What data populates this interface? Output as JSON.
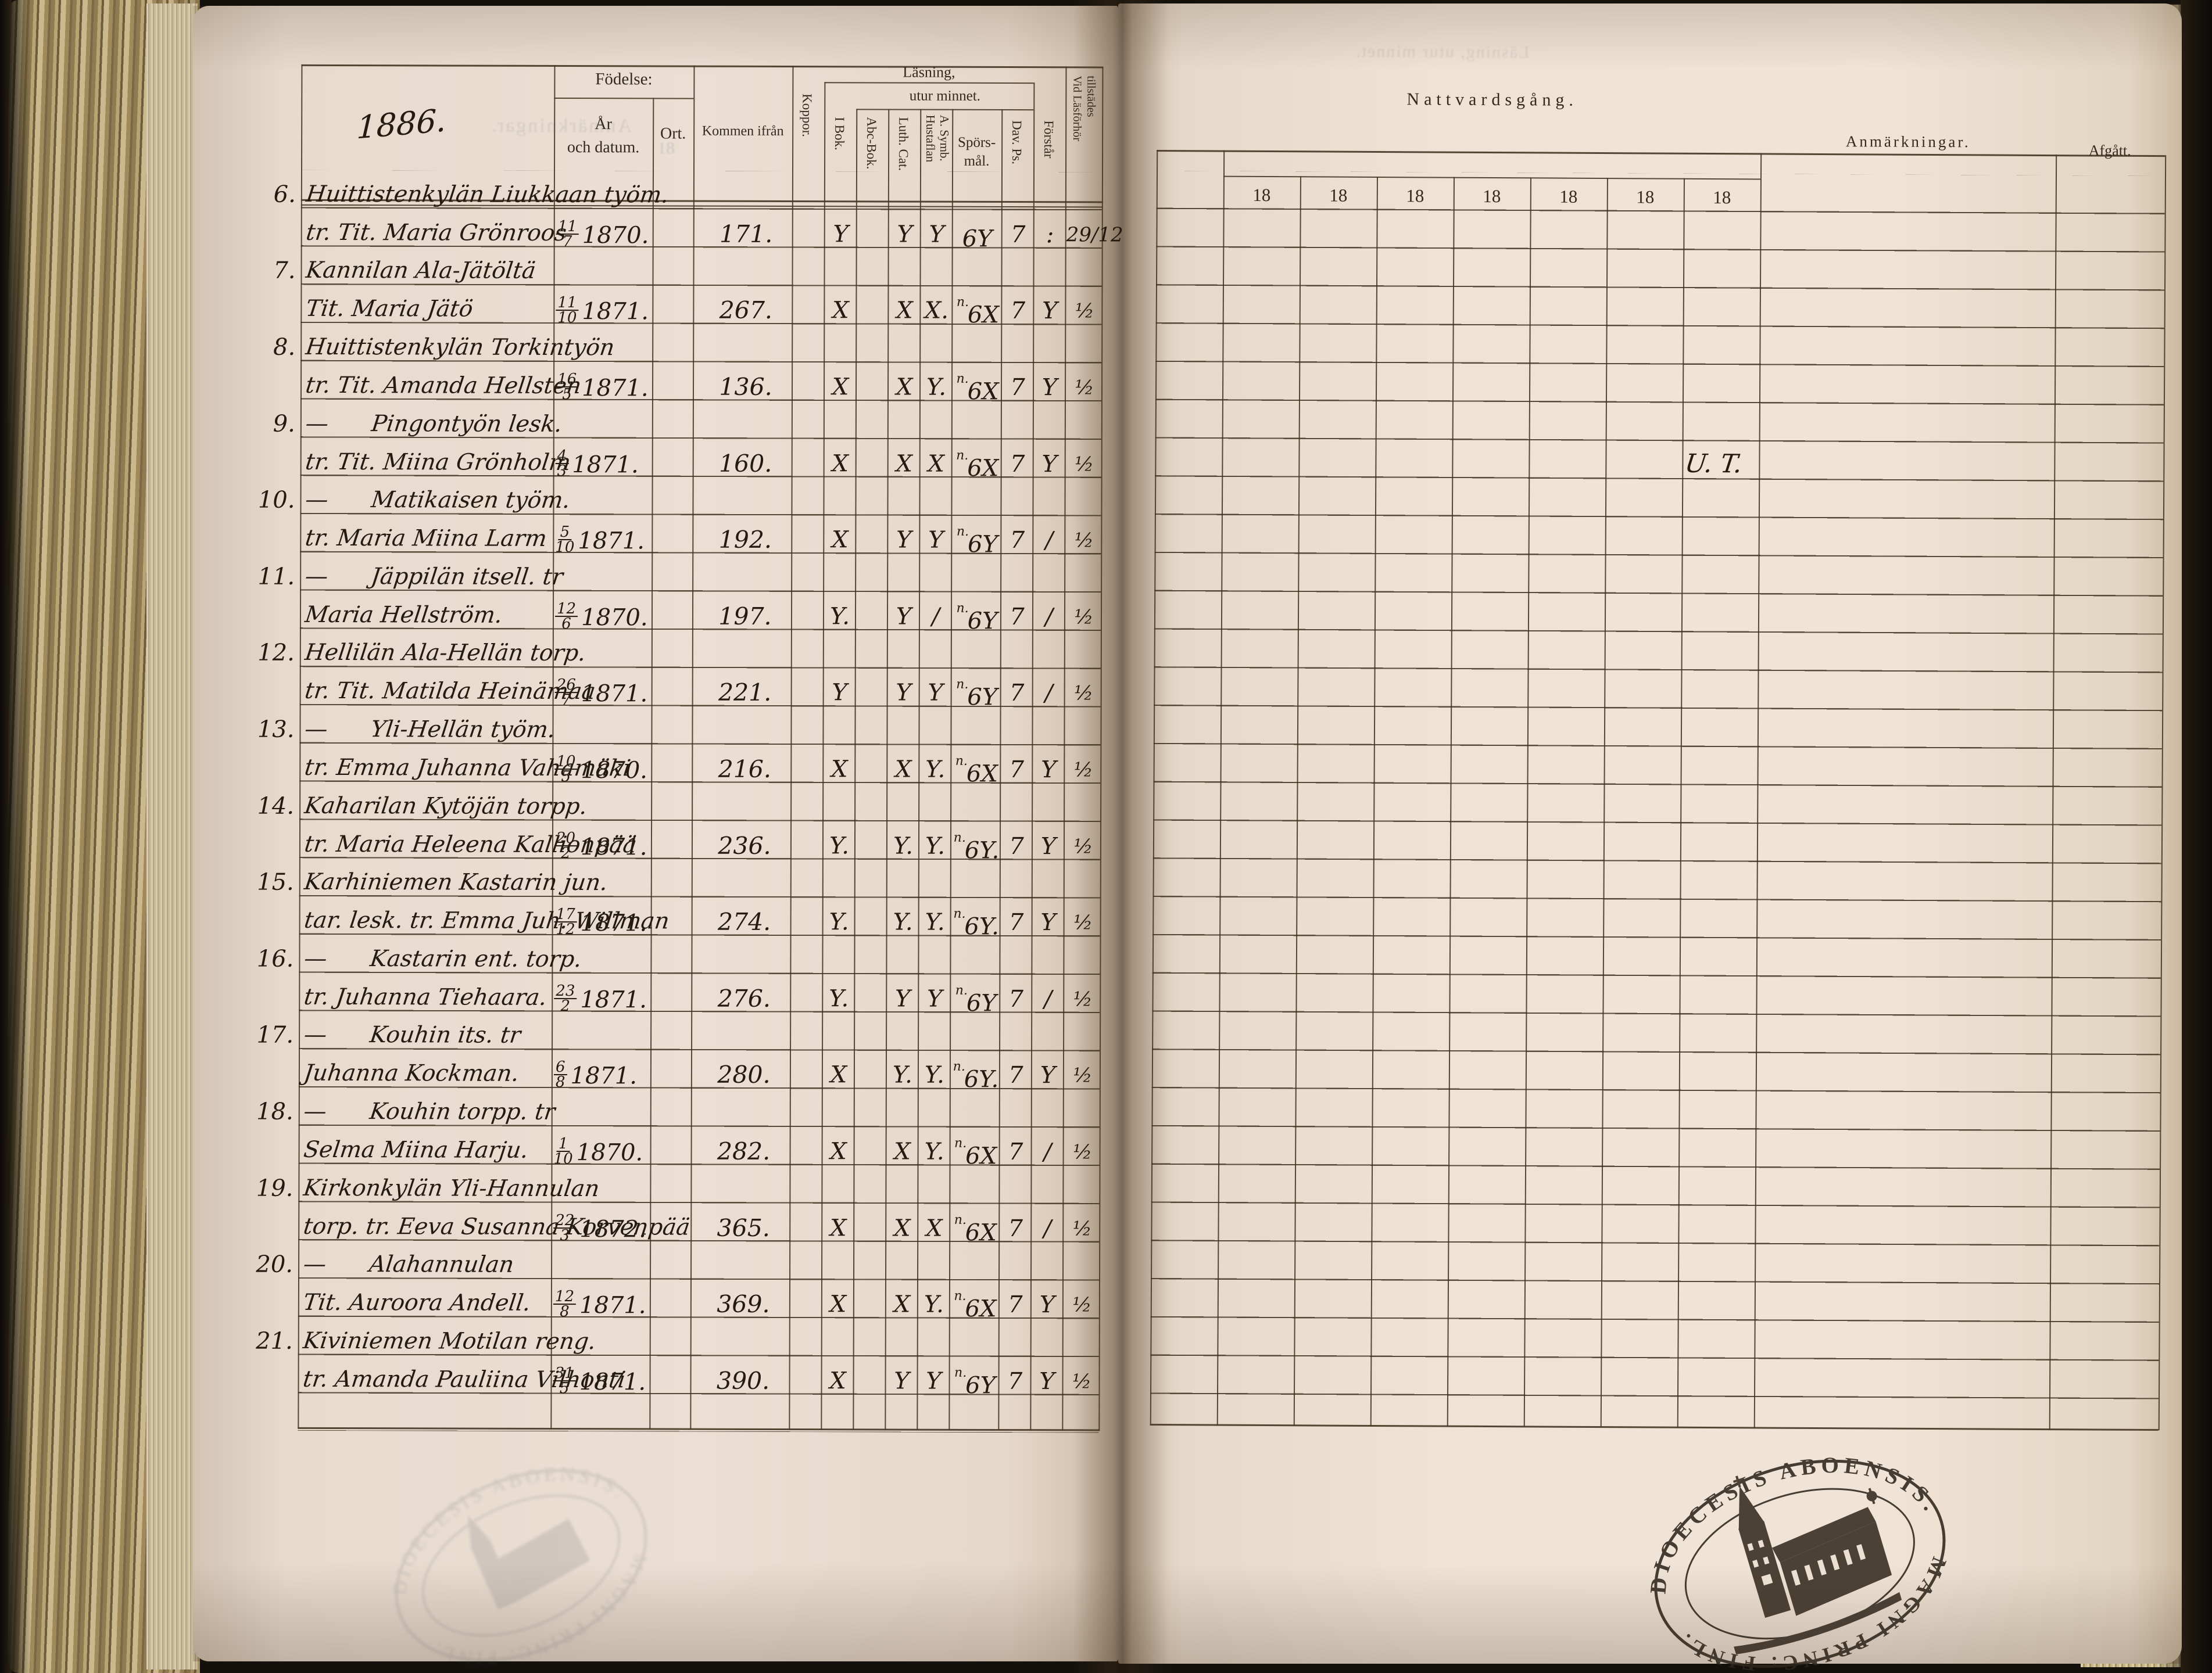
{
  "page_label": {
    "year": "1886."
  },
  "left_table": {
    "headers": {
      "fodelse": "Födelse:",
      "ar": "År",
      "och_datum": "och datum.",
      "ort": "Ort.",
      "kommen": "Kommen ifrån",
      "koppor": "Koppor.",
      "lasning": "Läsning,",
      "utur": "utur minnet.",
      "i_bok": "I Bok.",
      "abc": "Abc-Bok.",
      "luth": "Luth. Cat.",
      "hust1": "Hustaflan",
      "hust2": "A. Symb.",
      "spors1": "Spörs-",
      "spors2": "mål.",
      "dav": "Dav. Ps.",
      "forstar": "Förstår",
      "vid1": "Vid Läsförhör",
      "vid2": "tillstädes"
    },
    "ghosts": {
      "anmarkningar": "Anmärkningar.",
      "ort_ghost": "18",
      "right_header_ghost": "Läsning, utur minnet."
    },
    "rows": [
      {
        "num": "6.",
        "place": "Huittistenkylän Liukkaan työm.",
        "person": "tr. Tit. Maria Grönroos",
        "bdate": "11/7",
        "byear": "1870.",
        "from": "171.",
        "m_ibok": "Y",
        "m_abc": "",
        "m_luth": "Y",
        "m_hust": "Y",
        "m_sup": "",
        "m_spors": "6Y",
        "m_dav": "7",
        "m_forst": ":",
        "m_tillst": "29/12"
      },
      {
        "num": "7.",
        "place": "Kannilan Ala-Jätöltä",
        "person": "Tit. Maria Jätö",
        "bdate": "11/10",
        "byear": "1871.",
        "from": "267.",
        "m_ibok": "X",
        "m_abc": "",
        "m_luth": "X",
        "m_hust": "X.",
        "m_sup": "n.",
        "m_spors": "6X",
        "m_dav": "7",
        "m_forst": "Y",
        "m_tillst": "½"
      },
      {
        "num": "8.",
        "place": "Huittistenkylän Torkintyön",
        "person": "tr. Tit. Amanda Hellsten",
        "bdate": "16/5",
        "byear": "1871.",
        "from": "136.",
        "m_ibok": "X",
        "m_abc": "",
        "m_luth": "X",
        "m_hust": "Y.",
        "m_sup": "n.",
        "m_spors": "6X",
        "m_dav": "7",
        "m_forst": "Y",
        "m_tillst": "½"
      },
      {
        "num": "9.",
        "place": "—      Pingontyön lesk.",
        "person": "tr. Tit. Miina Grönholm",
        "bdate": "4/3",
        "byear": "1871.",
        "from": "160.",
        "m_ibok": "X",
        "m_abc": "",
        "m_luth": "X",
        "m_hust": "X",
        "m_sup": "n.",
        "m_spors": "6X",
        "m_dav": "7",
        "m_forst": "Y",
        "m_tillst": "½"
      },
      {
        "num": "10.",
        "place": "—      Matikaisen työm.",
        "person": "tr. Maria Miina Larm",
        "bdate": "5/10",
        "byear": "1871.",
        "from": "192.",
        "m_ibok": "X",
        "m_abc": "",
        "m_luth": "Y",
        "m_hust": "Y",
        "m_sup": "n.",
        "m_spors": "6Y",
        "m_dav": "7",
        "m_forst": "/",
        "m_tillst": "½"
      },
      {
        "num": "11.",
        "place": "—      Jäppilän itsell. tr",
        "person": "Maria Hellström.",
        "bdate": "12/6",
        "byear": "1870.",
        "from": "197.",
        "m_ibok": "Y.",
        "m_abc": "",
        "m_luth": "Y",
        "m_hust": "/",
        "m_sup": "n.",
        "m_spors": "6Y",
        "m_dav": "7",
        "m_forst": "/",
        "m_tillst": "½"
      },
      {
        "num": "12.",
        "place": "Hellilän Ala-Hellän torp.",
        "person": "tr. Tit. Matilda Heinämaa",
        "bdate": "26/7",
        "byear": "1871.",
        "from": "221.",
        "m_ibok": "Y",
        "m_abc": "",
        "m_luth": "Y",
        "m_hust": "Y",
        "m_sup": "n.",
        "m_spors": "6Y",
        "m_dav": "7",
        "m_forst": "/",
        "m_tillst": "½"
      },
      {
        "num": "13.",
        "place": "—      Yli-Hellän työm.",
        "person": "tr. Emma Juhanna Vahamäki",
        "bdate": "10/5",
        "byear": "1870.",
        "from": "216.",
        "m_ibok": "X",
        "m_abc": "",
        "m_luth": "X",
        "m_hust": "Y.",
        "m_sup": "n.",
        "m_spors": "6X",
        "m_dav": "7",
        "m_forst": "Y",
        "m_tillst": "½"
      },
      {
        "num": "14.",
        "place": "Kaharilan Kytöjän torpp.",
        "person": "tr. Maria Heleena Kallionpää",
        "bdate": "20/2",
        "byear": "1871.",
        "from": "236.",
        "m_ibok": "Y.",
        "m_abc": "",
        "m_luth": "Y.",
        "m_hust": "Y.",
        "m_sup": "n.",
        "m_spors": "6Y.",
        "m_dav": "7",
        "m_forst": "Y",
        "m_tillst": "½"
      },
      {
        "num": "15.",
        "place": "Karhiniemen Kastarin jun.",
        "person": "tar. lesk. tr. Emma Juh. Willman",
        "bdate": "17/12",
        "byear": "1871.",
        "from": "274.",
        "m_ibok": "Y.",
        "m_abc": "",
        "m_luth": "Y.",
        "m_hust": "Y.",
        "m_sup": "n.",
        "m_spors": "6Y.",
        "m_dav": "7",
        "m_forst": "Y",
        "m_tillst": "½"
      },
      {
        "num": "16.",
        "place": "—      Kastarin ent. torp.",
        "person": "tr. Juhanna Tiehaara.",
        "bdate": "23/2",
        "byear": "1871.",
        "from": "276.",
        "m_ibok": "Y.",
        "m_abc": "",
        "m_luth": "Y",
        "m_hust": "Y",
        "m_sup": "n.",
        "m_spors": "6Y",
        "m_dav": "7",
        "m_forst": "/",
        "m_tillst": "½"
      },
      {
        "num": "17.",
        "place": "—      Kouhin its. tr",
        "person": "Juhanna Kockman.",
        "bdate": "6/8",
        "byear": "1871.",
        "from": "280.",
        "m_ibok": "X",
        "m_abc": "",
        "m_luth": "Y.",
        "m_hust": "Y.",
        "m_sup": "n.",
        "m_spors": "6Y.",
        "m_dav": "7",
        "m_forst": "Y",
        "m_tillst": "½"
      },
      {
        "num": "18.",
        "place": "—      Kouhin torpp. tr",
        "person": "Selma Miina Harju.",
        "bdate": "1/10",
        "byear": "1870.",
        "from": "282.",
        "m_ibok": "X",
        "m_abc": "",
        "m_luth": "X",
        "m_hust": "Y.",
        "m_sup": "n.",
        "m_spors": "6X",
        "m_dav": "7",
        "m_forst": "/",
        "m_tillst": "½"
      },
      {
        "num": "19.",
        "place": "Kirkonkylän Yli-Hannulan",
        "person": "torp. tr. Eeva Susanna Korvenpää",
        "bdate": "22/3",
        "byear": "1872.",
        "from": "365.",
        "m_ibok": "X",
        "m_abc": "",
        "m_luth": "X",
        "m_hust": "X",
        "m_sup": "n.",
        "m_spors": "6X",
        "m_dav": "7",
        "m_forst": "/",
        "m_tillst": "½"
      },
      {
        "num": "20.",
        "place": "—      Alahannulan",
        "person": "Tit. Auroora Andell.",
        "bdate": "12/8",
        "byear": "1871.",
        "from": "369.",
        "m_ibok": "X",
        "m_abc": "",
        "m_luth": "X",
        "m_hust": "Y.",
        "m_sup": "n.",
        "m_spors": "6X",
        "m_dav": "7",
        "m_forst": "Y",
        "m_tillst": "½"
      },
      {
        "num": "21.",
        "place": "Kiviniemen Motilan reng.",
        "person": "tr. Amanda Pauliina Vilhonti",
        "bdate": "31/5",
        "byear": "1871.",
        "from": "390.",
        "m_ibok": "X",
        "m_abc": "",
        "m_luth": "Y",
        "m_hust": "Y",
        "m_sup": "n.",
        "m_spors": "6Y",
        "m_dav": "7",
        "m_forst": "Y",
        "m_tillst": "½"
      }
    ]
  },
  "right_table": {
    "title": "Nattvardsgång.",
    "year_columns": [
      "18",
      "18",
      "18",
      "18",
      "18",
      "18",
      "18"
    ],
    "anmarkningar": "Anmärkningar.",
    "afgatt": "Afgått.",
    "annotation": "U. T."
  },
  "stamp": {
    "arc_top": "DIOECESIS ABOENSIS.",
    "arc_bottom": "MAGNI PRINC: FINL."
  }
}
